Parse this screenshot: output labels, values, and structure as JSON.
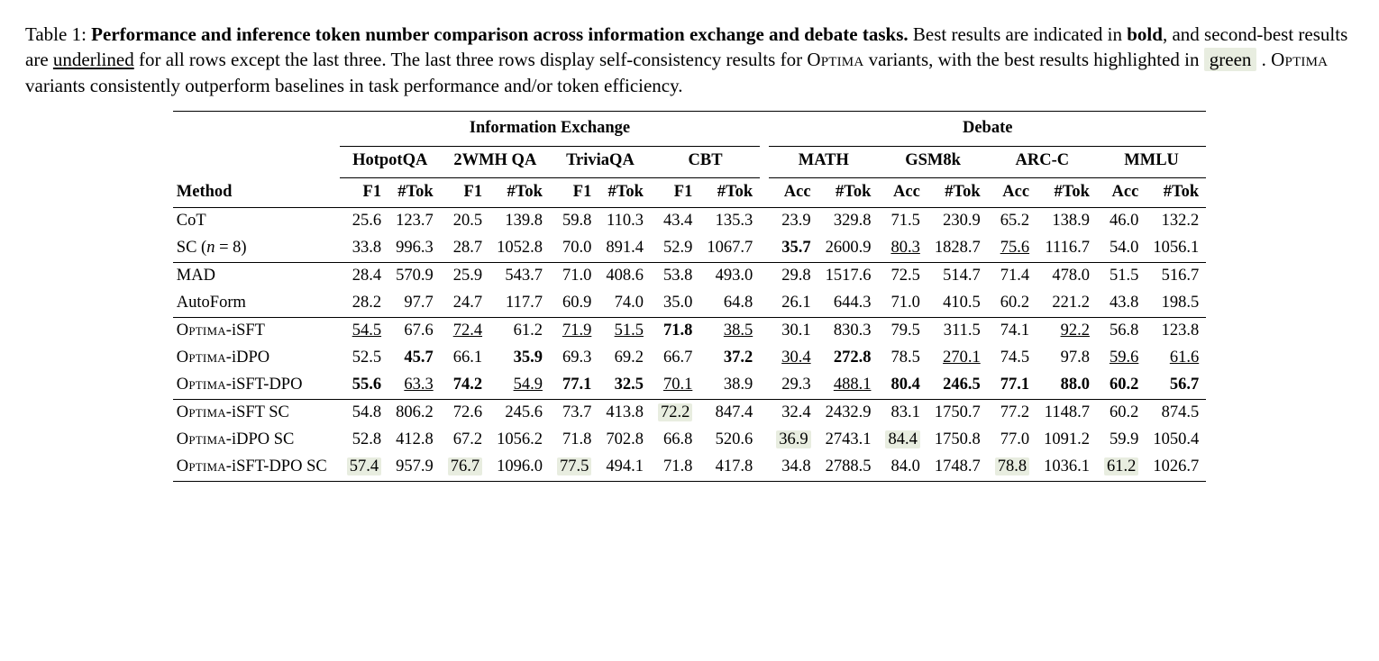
{
  "caption": {
    "label": "Table 1:",
    "bold_title": "Performance and inference token number comparison across information exchange and debate tasks.",
    "sentence1_a": "Best results are indicated in ",
    "sentence1_bold": "bold",
    "sentence1_b": ", and second-best results are ",
    "sentence1_ul": "underlined",
    "sentence1_c": " for all rows except the last three. The last three rows display self-consistency results for ",
    "optima": "Optima",
    "sentence1_d": " variants, with the best results highlighted in ",
    "green_word": "green",
    "sentence1_e": " . ",
    "sentence2": " variants consistently outperform baselines in task performance and/or token efficiency."
  },
  "headers": {
    "method": "Method",
    "super_ie": "Information Exchange",
    "super_debate": "Debate",
    "datasets_ie": [
      "HotpotQA",
      "2WMH QA",
      "TriviaQA",
      "CBT"
    ],
    "datasets_debate": [
      "MATH",
      "GSM8k",
      "ARC-C",
      "MMLU"
    ],
    "metric_f1": "F1",
    "metric_acc": "Acc",
    "metric_tok": "#Tok"
  },
  "colors": {
    "text": "#000000",
    "highlight": "#e8ede0",
    "rule": "#000000"
  },
  "rows": [
    {
      "method": {
        "text": "CoT"
      },
      "cells": [
        {
          "v": "25.6"
        },
        {
          "v": "123.7"
        },
        {
          "v": "20.5"
        },
        {
          "v": "139.8"
        },
        {
          "v": "59.8"
        },
        {
          "v": "110.3"
        },
        {
          "v": "43.4"
        },
        {
          "v": "135.3"
        },
        {
          "v": "23.9"
        },
        {
          "v": "329.8"
        },
        {
          "v": "71.5"
        },
        {
          "v": "230.9"
        },
        {
          "v": "65.2"
        },
        {
          "v": "138.9"
        },
        {
          "v": "46.0"
        },
        {
          "v": "132.2"
        }
      ],
      "group_start": true
    },
    {
      "method": {
        "text_a": "SC (",
        "ital": "n",
        "text_b": " = 8)"
      },
      "cells": [
        {
          "v": "33.8"
        },
        {
          "v": "996.3"
        },
        {
          "v": "28.7"
        },
        {
          "v": "1052.8"
        },
        {
          "v": "70.0"
        },
        {
          "v": "891.4"
        },
        {
          "v": "52.9"
        },
        {
          "v": "1067.7"
        },
        {
          "v": "35.7",
          "b": true
        },
        {
          "v": "2600.9"
        },
        {
          "v": "80.3",
          "u": true
        },
        {
          "v": "1828.7"
        },
        {
          "v": "75.6",
          "u": true
        },
        {
          "v": "1116.7"
        },
        {
          "v": "54.0"
        },
        {
          "v": "1056.1"
        }
      ]
    },
    {
      "method": {
        "text": "MAD"
      },
      "cells": [
        {
          "v": "28.4"
        },
        {
          "v": "570.9"
        },
        {
          "v": "25.9"
        },
        {
          "v": "543.7"
        },
        {
          "v": "71.0"
        },
        {
          "v": "408.6"
        },
        {
          "v": "53.8"
        },
        {
          "v": "493.0"
        },
        {
          "v": "29.8"
        },
        {
          "v": "1517.6"
        },
        {
          "v": "72.5"
        },
        {
          "v": "514.7"
        },
        {
          "v": "71.4"
        },
        {
          "v": "478.0"
        },
        {
          "v": "51.5"
        },
        {
          "v": "516.7"
        }
      ],
      "group_start": true
    },
    {
      "method": {
        "text": "AutoForm"
      },
      "cells": [
        {
          "v": "28.2"
        },
        {
          "v": "97.7"
        },
        {
          "v": "24.7"
        },
        {
          "v": "117.7"
        },
        {
          "v": "60.9"
        },
        {
          "v": "74.0"
        },
        {
          "v": "35.0"
        },
        {
          "v": "64.8"
        },
        {
          "v": "26.1"
        },
        {
          "v": "644.3"
        },
        {
          "v": "71.0"
        },
        {
          "v": "410.5"
        },
        {
          "v": "60.2"
        },
        {
          "v": "221.2"
        },
        {
          "v": "43.8"
        },
        {
          "v": "198.5"
        }
      ]
    },
    {
      "method": {
        "sc": "Optima",
        "suffix": "-iSFT"
      },
      "cells": [
        {
          "v": "54.5",
          "u": true
        },
        {
          "v": "67.6"
        },
        {
          "v": "72.4",
          "u": true
        },
        {
          "v": "61.2"
        },
        {
          "v": "71.9",
          "u": true
        },
        {
          "v": "51.5",
          "u": true
        },
        {
          "v": "71.8",
          "b": true
        },
        {
          "v": "38.5",
          "u": true
        },
        {
          "v": "30.1"
        },
        {
          "v": "830.3"
        },
        {
          "v": "79.5"
        },
        {
          "v": "311.5"
        },
        {
          "v": "74.1"
        },
        {
          "v": "92.2",
          "u": true
        },
        {
          "v": "56.8"
        },
        {
          "v": "123.8"
        }
      ],
      "group_start": true
    },
    {
      "method": {
        "sc": "Optima",
        "suffix": "-iDPO"
      },
      "cells": [
        {
          "v": "52.5"
        },
        {
          "v": "45.7",
          "b": true
        },
        {
          "v": "66.1"
        },
        {
          "v": "35.9",
          "b": true
        },
        {
          "v": "69.3"
        },
        {
          "v": "69.2"
        },
        {
          "v": "66.7"
        },
        {
          "v": "37.2",
          "b": true
        },
        {
          "v": "30.4",
          "u": true
        },
        {
          "v": "272.8",
          "b": true
        },
        {
          "v": "78.5"
        },
        {
          "v": "270.1",
          "u": true
        },
        {
          "v": "74.5"
        },
        {
          "v": "97.8"
        },
        {
          "v": "59.6",
          "u": true
        },
        {
          "v": "61.6",
          "u": true
        }
      ]
    },
    {
      "method": {
        "sc": "Optima",
        "suffix": "-iSFT-DPO"
      },
      "cells": [
        {
          "v": "55.6",
          "b": true
        },
        {
          "v": "63.3",
          "u": true
        },
        {
          "v": "74.2",
          "b": true
        },
        {
          "v": "54.9",
          "u": true
        },
        {
          "v": "77.1",
          "b": true
        },
        {
          "v": "32.5",
          "b": true
        },
        {
          "v": "70.1",
          "u": true
        },
        {
          "v": "38.9"
        },
        {
          "v": "29.3"
        },
        {
          "v": "488.1",
          "u": true
        },
        {
          "v": "80.4",
          "b": true
        },
        {
          "v": "246.5",
          "b": true
        },
        {
          "v": "77.1",
          "b": true
        },
        {
          "v": "88.0",
          "b": true
        },
        {
          "v": "60.2",
          "b": true
        },
        {
          "v": "56.7",
          "b": true
        }
      ]
    },
    {
      "method": {
        "sc": "Optima",
        "suffix": "-iSFT SC"
      },
      "cells": [
        {
          "v": "54.8"
        },
        {
          "v": "806.2"
        },
        {
          "v": "72.6"
        },
        {
          "v": "245.6"
        },
        {
          "v": "73.7"
        },
        {
          "v": "413.8"
        },
        {
          "v": "72.2",
          "h": true
        },
        {
          "v": "847.4"
        },
        {
          "v": "32.4"
        },
        {
          "v": "2432.9"
        },
        {
          "v": "83.1"
        },
        {
          "v": "1750.7"
        },
        {
          "v": "77.2"
        },
        {
          "v": "1148.7"
        },
        {
          "v": "60.2"
        },
        {
          "v": "874.5"
        }
      ],
      "group_start": true
    },
    {
      "method": {
        "sc": "Optima",
        "suffix": "-iDPO SC"
      },
      "cells": [
        {
          "v": "52.8"
        },
        {
          "v": "412.8"
        },
        {
          "v": "67.2"
        },
        {
          "v": "1056.2"
        },
        {
          "v": "71.8"
        },
        {
          "v": "702.8"
        },
        {
          "v": "66.8"
        },
        {
          "v": "520.6"
        },
        {
          "v": "36.9",
          "h": true
        },
        {
          "v": "2743.1"
        },
        {
          "v": "84.4",
          "h": true
        },
        {
          "v": "1750.8"
        },
        {
          "v": "77.0"
        },
        {
          "v": "1091.2"
        },
        {
          "v": "59.9"
        },
        {
          "v": "1050.4"
        }
      ]
    },
    {
      "method": {
        "sc": "Optima",
        "suffix": "-iSFT-DPO SC"
      },
      "cells": [
        {
          "v": "57.4",
          "h": true
        },
        {
          "v": "957.9"
        },
        {
          "v": "76.7",
          "h": true
        },
        {
          "v": "1096.0"
        },
        {
          "v": "77.5",
          "h": true
        },
        {
          "v": "494.1"
        },
        {
          "v": "71.8"
        },
        {
          "v": "417.8"
        },
        {
          "v": "34.8"
        },
        {
          "v": "2788.5"
        },
        {
          "v": "84.0"
        },
        {
          "v": "1748.7"
        },
        {
          "v": "78.8",
          "h": true
        },
        {
          "v": "1036.1"
        },
        {
          "v": "61.2",
          "h": true
        },
        {
          "v": "1026.7"
        }
      ],
      "last": true
    }
  ]
}
